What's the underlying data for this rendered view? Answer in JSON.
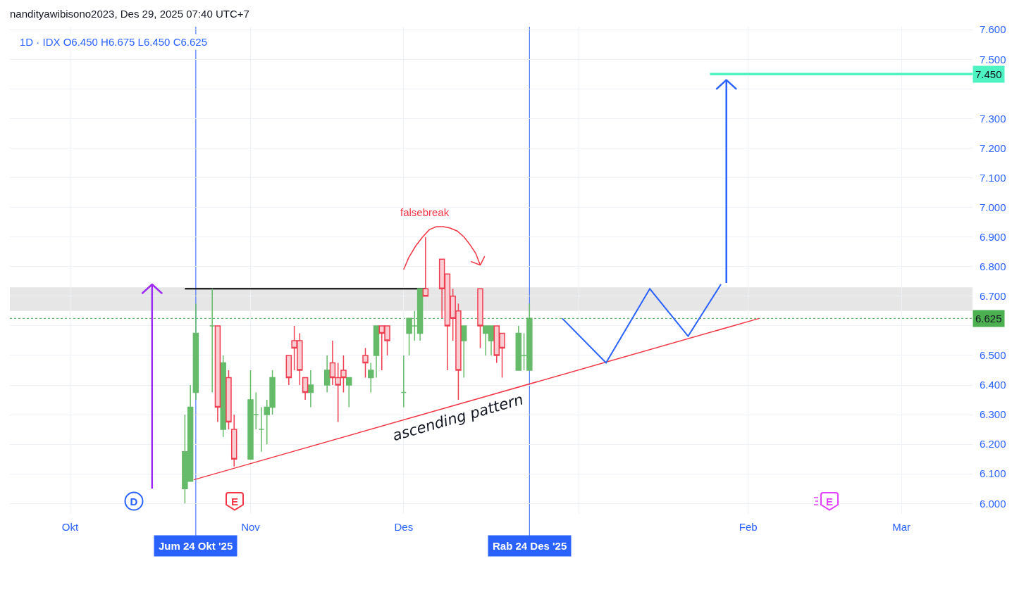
{
  "chart_data": {
    "type": "candlestick",
    "title": "nandityawibisono2023, Des 29, 2025 07:40 UTC+7",
    "subtitle": "1D · IDX O6.450 H6.675 L6.450 C6.625",
    "x": [
      "2025-10-22",
      "2025-10-23",
      "2025-10-24",
      "2025-10-27",
      "2025-10-28",
      "2025-10-29",
      "2025-10-30",
      "2025-10-31",
      "2025-11-03",
      "2025-11-04",
      "2025-11-05",
      "2025-11-06",
      "2025-11-07",
      "2025-11-10",
      "2025-11-11",
      "2025-11-12",
      "2025-11-13",
      "2025-11-14",
      "2025-11-17",
      "2025-11-18",
      "2025-11-19",
      "2025-11-20",
      "2025-11-21",
      "2025-11-24",
      "2025-11-25",
      "2025-11-26",
      "2025-11-27",
      "2025-11-28",
      "2025-12-01",
      "2025-12-02",
      "2025-12-03",
      "2025-12-04",
      "2025-12-05",
      "2025-12-08",
      "2025-12-09",
      "2025-12-10",
      "2025-12-11",
      "2025-12-12",
      "2025-12-15",
      "2025-12-16",
      "2025-12-17",
      "2025-12-18",
      "2025-12-19",
      "2025-12-22",
      "2025-12-23",
      "2025-12-24"
    ],
    "ohlc": [
      [
        6050,
        6300,
        6000,
        6175
      ],
      [
        6075,
        6400,
        6075,
        6325
      ],
      [
        6375,
        6675,
        6350,
        6575
      ],
      [
        6600,
        6725,
        6375,
        6600
      ],
      [
        6600,
        6600,
        6275,
        6325
      ],
      [
        6250,
        6500,
        6225,
        6475
      ],
      [
        6425,
        6450,
        6250,
        6275
      ],
      [
        6250,
        6300,
        6125,
        6150
      ],
      [
        6150,
        6450,
        6150,
        6350
      ],
      [
        6300,
        6375,
        6250,
        6300
      ],
      [
        6250,
        6325,
        6175,
        6250
      ],
      [
        6300,
        6350,
        6200,
        6325
      ],
      [
        6325,
        6450,
        6300,
        6425
      ],
      [
        6500,
        6500,
        6400,
        6425
      ],
      [
        6550,
        6600,
        6450,
        6525
      ],
      [
        6550,
        6575,
        6400,
        6450
      ],
      [
        6425,
        6425,
        6350,
        6375
      ],
      [
        6375,
        6450,
        6325,
        6400
      ],
      [
        6400,
        6500,
        6375,
        6450
      ],
      [
        6475,
        6550,
        6400,
        6425
      ],
      [
        6425,
        6475,
        6275,
        6400
      ],
      [
        6450,
        6500,
        6375,
        6425
      ],
      [
        6400,
        6425,
        6325,
        6425
      ],
      [
        6500,
        6525,
        6425,
        6475
      ],
      [
        6425,
        6475,
        6375,
        6450
      ],
      [
        6500,
        6600,
        6425,
        6600
      ],
      [
        6600,
        6600,
        6450,
        6575
      ],
      [
        6600,
        6600,
        6500,
        6550
      ],
      [
        6375,
        6500,
        6325,
        6375
      ],
      [
        6575,
        6625,
        6500,
        6625
      ],
      [
        6600,
        6650,
        6550,
        6600
      ],
      [
        6575,
        6725,
        6550,
        6725
      ],
      [
        6725,
        6900,
        6700,
        6700
      ],
      [
        6825,
        6825,
        6625,
        6725
      ],
      [
        6775,
        6775,
        6450,
        6600
      ],
      [
        6700,
        6725,
        6550,
        6625
      ],
      [
        6650,
        6675,
        6350,
        6450
      ],
      [
        6550,
        6600,
        6425,
        6600
      ],
      [
        6725,
        6725,
        6525,
        6600
      ],
      [
        6575,
        6600,
        6500,
        6600
      ],
      [
        6550,
        6600,
        6500,
        6600
      ],
      [
        6600,
        6600,
        6475,
        6500
      ],
      [
        6575,
        6575,
        6425,
        6525
      ],
      [
        6450,
        6600,
        6450,
        6575
      ],
      [
        6500,
        6575,
        6450,
        6500
      ],
      [
        6450,
        6675,
        6450,
        6625
      ]
    ],
    "colors": [
      "#66bb6a",
      "#66bb6a",
      "#66bb6a",
      "#66bb6a",
      "#f9cdd2",
      "#66bb6a",
      "#f9cdd2",
      "#f9cdd2",
      "#66bb6a",
      "#66bb6a",
      "#66bb6a",
      "#66bb6a",
      "#66bb6a",
      "#f9cdd2",
      "#f9cdd2",
      "#f9cdd2",
      "#f9cdd2",
      "#66bb6a",
      "#66bb6a",
      "#f9cdd2",
      "#f9cdd2",
      "#f9cdd2",
      "#66bb6a",
      "#f9cdd2",
      "#66bb6a",
      "#66bb6a",
      "#f9cdd2",
      "#f9cdd2",
      "#66bb6a",
      "#66bb6a",
      "#66bb6a",
      "#66bb6a",
      "#f9cdd2",
      "#f9cdd2",
      "#f9cdd2",
      "#f9cdd2",
      "#f9cdd2",
      "#66bb6a",
      "#f9cdd2",
      "#66bb6a",
      "#66bb6a",
      "#f9cdd2",
      "#f9cdd2",
      "#66bb6a",
      "#66bb6a",
      "#66bb6a"
    ],
    "series": [
      {
        "type": "line",
        "x": [
          "2025-10-22",
          "2025-12-05"
        ],
        "values": [
          6725,
          6725
        ],
        "color": "#000000"
      },
      {
        "type": "line",
        "x": [
          "2025-10-23T15:00",
          "2026-02-04"
        ],
        "values": [
          6080,
          6625
        ],
        "color": "#f23645"
      },
      {
        "type": "line",
        "x": [
          "2025-12-30",
          "2026-01-07",
          "2026-01-15",
          "2026-01-22",
          "2026-01-28"
        ],
        "values": [
          6625,
          6475,
          6725,
          6565,
          6740
        ],
        "color": "#2962ff"
      },
      {
        "type": "line",
        "x": [
          "2025-10-16",
          "2025-10-16"
        ],
        "values": [
          6050,
          6740
        ],
        "color": "#9c2cf3"
      },
      {
        "type": "line",
        "x": [
          "2026-01-29",
          "2026-01-29"
        ],
        "values": [
          6745,
          7430
        ],
        "color": "#2962ff"
      },
      {
        "type": "line",
        "x": [
          "2025-12-01",
          "2025-12-01T22:00",
          "2025-12-03T05:00",
          "2025-12-04T11:00",
          "2025-12-05T17:00",
          "2025-12-07",
          "2025-12-08T06:00",
          "2025-12-09T12:00",
          "2025-12-10T19:00",
          "2025-12-12T01:00",
          "2025-12-13T02:00",
          "2025-12-14T04:00",
          "2025-12-15"
        ],
        "values": [
          6790,
          6830,
          6870,
          6900,
          6925,
          6935,
          6935,
          6930,
          6920,
          6900,
          6875,
          6845,
          6805
        ],
        "color": "#f23645"
      },
      {
        "type": "line",
        "x": [
          "2026-01-26",
          "2026-03-15"
        ],
        "values": [
          7450,
          7450
        ],
        "color": "#4df3c1",
        "value_labels": [
          null,
          "7.450"
        ]
      }
    ],
    "bands": [
      {
        "axis": "y",
        "from": 6650,
        "to": 6730,
        "color": "#e6e6e6"
      }
    ],
    "xlim": [
      "2025-09-20",
      "2026-03-15"
    ],
    "xticks": [
      {
        "value": "2025-10-01",
        "label": "Okt"
      },
      {
        "value": "2025-11-03",
        "label": "Nov"
      },
      {
        "value": "2025-12-01",
        "label": "Des"
      },
      {
        "value": "2026-01-02",
        "label": null
      },
      {
        "value": "2026-02-02",
        "label": "Feb"
      },
      {
        "value": "2026-03-02",
        "label": "Mar"
      }
    ],
    "ylim": [
      5965,
      7610
    ],
    "yticks": [
      {
        "value": 6000,
        "label": "6.000"
      },
      {
        "value": 6100,
        "label": "6.100"
      },
      {
        "value": 6200,
        "label": "6.200"
      },
      {
        "value": 6300,
        "label": "6.300"
      },
      {
        "value": 6400,
        "label": "6.400"
      },
      {
        "value": 6500,
        "label": "6.500"
      },
      {
        "value": 6600,
        "label": null
      },
      {
        "value": 6700,
        "label": "6.700"
      },
      {
        "value": 6800,
        "label": "6.800"
      },
      {
        "value": 6900,
        "label": "6.900"
      },
      {
        "value": 7000,
        "label": "7.000"
      },
      {
        "value": 7100,
        "label": "7.100"
      },
      {
        "value": 7200,
        "label": "7.200"
      },
      {
        "value": 7300,
        "label": "7.300"
      },
      {
        "value": 7400,
        "label": null
      },
      {
        "value": 7500,
        "label": "7.500"
      },
      {
        "value": 7600,
        "label": "7.600"
      }
    ],
    "grid": true,
    "ref_lines": [
      {
        "axis": "x",
        "value": "2025-10-24",
        "label": "Jum 24 Okt '25",
        "color": "#2962ff"
      },
      {
        "axis": "x",
        "value": "2025-12-24",
        "label": "Rab 24 Des '25",
        "color": "#2962ff"
      },
      {
        "axis": "y",
        "value": 6625,
        "label": "6.625",
        "color": "#4caf50",
        "line_style": "dotted"
      }
    ],
    "annotations": [
      {
        "text": "falsebreak",
        "x": "2025-12-05T17:00",
        "y": 6925
      },
      {
        "text": "ascending pattern",
        "x": "2025-12-11",
        "y": 6335
      },
      "D",
      "E",
      "E"
    ]
  }
}
